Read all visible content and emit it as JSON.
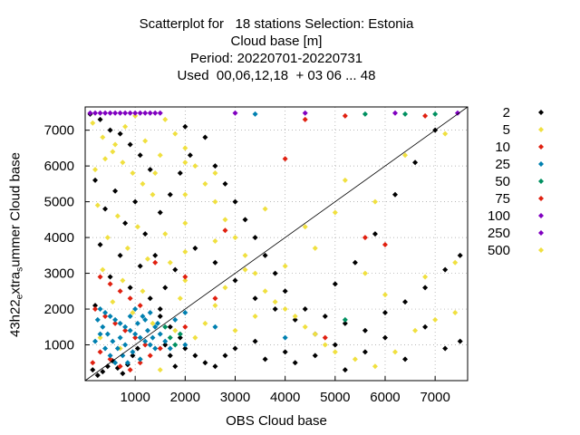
{
  "title_lines": [
    "Scatterplot for   18 stations Selection: Estonia",
    "Cloud base [m]",
    "Period: 20220701-20220731",
    "Used  00,06,12,18  + 03 06 ... 48"
  ],
  "chart_data": {
    "type": "scatter",
    "xlabel": "OBS Cloud base",
    "ylabel_parts": [
      "43h22",
      "e",
      "xtra",
      "s",
      "ummer Cloud base"
    ],
    "xlim": [
      0,
      7650
    ],
    "ylim": [
      0,
      7650
    ],
    "xticks": [
      "1000",
      "2000",
      "3000",
      "4000",
      "5000",
      "6000",
      "7000"
    ],
    "yticks": [
      "1000",
      "2000",
      "3000",
      "4000",
      "5000",
      "6000",
      "7000"
    ],
    "xtick_values": [
      1000,
      2000,
      3000,
      4000,
      5000,
      6000,
      7000
    ],
    "ytick_values": [
      1000,
      2000,
      3000,
      4000,
      5000,
      6000,
      7000
    ],
    "grid": true,
    "diagonal": true,
    "legend_position": "right",
    "legend": [
      {
        "label": "2",
        "color": "#000000"
      },
      {
        "label": "5",
        "color": "#f0e040"
      },
      {
        "label": "10",
        "color": "#e02010"
      },
      {
        "label": "25",
        "color": "#0080b0"
      },
      {
        "label": "50",
        "color": "#009060"
      },
      {
        "label": "75",
        "color": "#e02010"
      },
      {
        "label": "100",
        "color": "#8000c0"
      },
      {
        "label": "250",
        "color": "#8000c0"
      },
      {
        "label": "500",
        "color": "#f0e040"
      }
    ],
    "series": [
      {
        "color": "#000000",
        "points": [
          [
            100,
            7450
          ],
          [
            300,
            7300
          ],
          [
            500,
            7000
          ],
          [
            700,
            6900
          ],
          [
            900,
            6600
          ],
          [
            1100,
            6300
          ],
          [
            1300,
            5900
          ],
          [
            200,
            5600
          ],
          [
            600,
            5300
          ],
          [
            1000,
            5000
          ],
          [
            400,
            4800
          ],
          [
            800,
            4400
          ],
          [
            1200,
            4100
          ],
          [
            300,
            3800
          ],
          [
            700,
            3500
          ],
          [
            1100,
            3200
          ],
          [
            500,
            2900
          ],
          [
            900,
            2600
          ],
          [
            1300,
            2300
          ],
          [
            200,
            2100
          ],
          [
            1500,
            1800
          ],
          [
            1700,
            1500
          ],
          [
            1900,
            1200
          ],
          [
            2000,
            900
          ],
          [
            2200,
            700
          ],
          [
            2400,
            500
          ],
          [
            2600,
            400
          ],
          [
            2800,
            700
          ],
          [
            3000,
            900
          ],
          [
            3400,
            1100
          ],
          [
            3600,
            600
          ],
          [
            4000,
            800
          ],
          [
            4200,
            500
          ],
          [
            4600,
            700
          ],
          [
            5000,
            1000
          ],
          [
            5200,
            300
          ],
          [
            5600,
            800
          ],
          [
            6000,
            1200
          ],
          [
            6400,
            600
          ],
          [
            6800,
            1500
          ],
          [
            7200,
            900
          ],
          [
            7500,
            1100
          ],
          [
            2000,
            7100
          ],
          [
            2400,
            6800
          ],
          [
            2600,
            6000
          ],
          [
            2800,
            5500
          ],
          [
            3000,
            5000
          ],
          [
            3200,
            4500
          ],
          [
            3400,
            4000
          ],
          [
            3600,
            3500
          ],
          [
            3800,
            3000
          ],
          [
            4000,
            2500
          ],
          [
            4400,
            2000
          ],
          [
            4800,
            1800
          ],
          [
            5200,
            1600
          ],
          [
            5600,
            1400
          ],
          [
            6000,
            1900
          ],
          [
            6400,
            2200
          ],
          [
            6800,
            2600
          ],
          [
            7200,
            3100
          ],
          [
            7500,
            3500
          ],
          [
            2200,
            3700
          ],
          [
            2600,
            3300
          ],
          [
            3000,
            2800
          ],
          [
            3400,
            2300
          ],
          [
            3800,
            2000
          ],
          [
            4200,
            1700
          ],
          [
            4600,
            1300
          ],
          [
            5000,
            2700
          ],
          [
            5400,
            3300
          ],
          [
            5800,
            4100
          ],
          [
            6200,
            5200
          ],
          [
            6600,
            6100
          ],
          [
            7000,
            7000
          ],
          [
            1500,
            4700
          ],
          [
            1700,
            5200
          ],
          [
            1900,
            5800
          ],
          [
            2100,
            6300
          ],
          [
            1600,
            2600
          ],
          [
            1800,
            3100
          ],
          [
            1400,
            3500
          ],
          [
            1500,
            2000
          ],
          [
            1600,
            1000
          ],
          [
            1700,
            700
          ],
          [
            1800,
            400
          ],
          [
            150,
            300
          ],
          [
            250,
            150
          ],
          [
            350,
            250
          ],
          [
            450,
            400
          ],
          [
            550,
            550
          ],
          [
            650,
            350
          ],
          [
            750,
            200
          ],
          [
            850,
            450
          ],
          [
            950,
            700
          ],
          [
            1050,
            900
          ]
        ]
      },
      {
        "color": "#f0e040",
        "points": [
          [
            150,
            7200
          ],
          [
            350,
            6800
          ],
          [
            550,
            6400
          ],
          [
            750,
            6100
          ],
          [
            950,
            5800
          ],
          [
            1150,
            5500
          ],
          [
            1350,
            5200
          ],
          [
            250,
            4900
          ],
          [
            650,
            4600
          ],
          [
            1050,
            4300
          ],
          [
            450,
            4000
          ],
          [
            850,
            3700
          ],
          [
            1250,
            3400
          ],
          [
            350,
            3100
          ],
          [
            750,
            2800
          ],
          [
            1150,
            2500
          ],
          [
            550,
            2200
          ],
          [
            950,
            1900
          ],
          [
            1350,
            1600
          ],
          [
            1600,
            7300
          ],
          [
            1800,
            6900
          ],
          [
            2000,
            6500
          ],
          [
            2200,
            6000
          ],
          [
            2400,
            5500
          ],
          [
            2600,
            5000
          ],
          [
            2800,
            4500
          ],
          [
            3000,
            4000
          ],
          [
            3200,
            3500
          ],
          [
            3400,
            3000
          ],
          [
            3600,
            2500
          ],
          [
            3800,
            2200
          ],
          [
            4000,
            2000
          ],
          [
            4200,
            1800
          ],
          [
            4400,
            1500
          ],
          [
            4600,
            1300
          ],
          [
            4800,
            1000
          ],
          [
            5000,
            800
          ],
          [
            5400,
            600
          ],
          [
            5800,
            400
          ],
          [
            6200,
            800
          ],
          [
            6600,
            1400
          ],
          [
            7000,
            1700
          ],
          [
            7400,
            1900
          ],
          [
            2000,
            2800
          ],
          [
            2000,
            3600
          ],
          [
            2000,
            4400
          ],
          [
            2000,
            5200
          ],
          [
            2000,
            6100
          ],
          [
            2600,
            2100
          ],
          [
            2600,
            3900
          ],
          [
            2600,
            5800
          ],
          [
            3600,
            4800
          ],
          [
            4400,
            4300
          ],
          [
            5200,
            5600
          ],
          [
            5800,
            5000
          ],
          [
            6400,
            6300
          ],
          [
            7200,
            6900
          ],
          [
            1800,
            1400
          ],
          [
            1900,
            2300
          ],
          [
            1700,
            3300
          ],
          [
            1600,
            4100
          ],
          [
            1500,
            6300
          ],
          [
            1400,
            5800
          ],
          [
            1200,
            6700
          ],
          [
            1000,
            7400
          ],
          [
            800,
            7100
          ],
          [
            600,
            6600
          ],
          [
            400,
            6200
          ],
          [
            200,
            5900
          ],
          [
            300,
            1200
          ],
          [
            700,
            900
          ],
          [
            1100,
            600
          ],
          [
            1500,
            300
          ],
          [
            3000,
            1400
          ],
          [
            3400,
            1800
          ],
          [
            4000,
            3200
          ],
          [
            4600,
            3700
          ],
          [
            5000,
            4700
          ],
          [
            5600,
            3000
          ],
          [
            6000,
            2400
          ],
          [
            6800,
            2900
          ],
          [
            7400,
            3300
          ],
          [
            2200,
            1200
          ],
          [
            2400,
            1600
          ],
          [
            2800,
            2600
          ],
          [
            3200,
            3100
          ]
        ]
      },
      {
        "color": "#e02010",
        "points": [
          [
            300,
            2900
          ],
          [
            500,
            2700
          ],
          [
            700,
            2500
          ],
          [
            900,
            2300
          ],
          [
            1100,
            2100
          ],
          [
            200,
            2000
          ],
          [
            400,
            1800
          ],
          [
            600,
            1600
          ],
          [
            800,
            1400
          ],
          [
            1000,
            1200
          ],
          [
            1200,
            1000
          ],
          [
            300,
            800
          ],
          [
            500,
            600
          ],
          [
            700,
            400
          ],
          [
            900,
            300
          ],
          [
            1100,
            500
          ],
          [
            1300,
            700
          ],
          [
            150,
            500
          ],
          [
            1500,
            900
          ],
          [
            2000,
            2900
          ],
          [
            2000,
            1500
          ],
          [
            2600,
            2300
          ],
          [
            2800,
            4200
          ],
          [
            4000,
            6200
          ],
          [
            4400,
            7300
          ],
          [
            4800,
            1200
          ],
          [
            5200,
            7400
          ],
          [
            6000,
            3800
          ],
          [
            6800,
            7400
          ],
          [
            5600,
            4000
          ],
          [
            1400,
            3300
          ]
        ]
      },
      {
        "color": "#0080b0",
        "points": [
          [
            300,
            2000
          ],
          [
            400,
            1900
          ],
          [
            500,
            1800
          ],
          [
            600,
            1700
          ],
          [
            700,
            1600
          ],
          [
            800,
            1500
          ],
          [
            900,
            1400
          ],
          [
            1000,
            1300
          ],
          [
            1100,
            1200
          ],
          [
            1200,
            1100
          ],
          [
            1300,
            1000
          ],
          [
            1400,
            900
          ],
          [
            250,
            1700
          ],
          [
            350,
            1500
          ],
          [
            450,
            1300
          ],
          [
            550,
            1100
          ],
          [
            650,
            900
          ],
          [
            750,
            700
          ],
          [
            850,
            500
          ],
          [
            950,
            800
          ],
          [
            1050,
            1600
          ],
          [
            1150,
            1800
          ],
          [
            1250,
            1400
          ],
          [
            1350,
            1200
          ],
          [
            1450,
            1600
          ],
          [
            200,
            1100
          ],
          [
            300,
            1300
          ],
          [
            400,
            900
          ],
          [
            500,
            700
          ],
          [
            600,
            500
          ],
          [
            700,
            1200
          ],
          [
            800,
            1000
          ],
          [
            900,
            1800
          ],
          [
            1000,
            2000
          ],
          [
            1100,
            600
          ],
          [
            1200,
            1700
          ],
          [
            1300,
            1900
          ],
          [
            1400,
            1500
          ],
          [
            1500,
            1300
          ],
          [
            1600,
            1100
          ],
          [
            1700,
            900
          ],
          [
            1800,
            1700
          ],
          [
            2000,
            1000
          ],
          [
            2000,
            1900
          ],
          [
            2600,
            1500
          ],
          [
            3400,
            7450
          ],
          [
            4000,
            1200
          ]
        ]
      },
      {
        "color": "#009060",
        "points": [
          [
            1600,
            1500
          ],
          [
            1700,
            1200
          ],
          [
            1800,
            1000
          ],
          [
            1900,
            1300
          ],
          [
            5200,
            1700
          ],
          [
            6400,
            7450
          ],
          [
            7000,
            7450
          ],
          [
            5600,
            7450
          ]
        ]
      },
      {
        "color": "#8000c0",
        "points": [
          [
            100,
            7480
          ],
          [
            200,
            7480
          ],
          [
            300,
            7480
          ],
          [
            400,
            7480
          ],
          [
            500,
            7480
          ],
          [
            600,
            7480
          ],
          [
            700,
            7480
          ],
          [
            800,
            7480
          ],
          [
            900,
            7480
          ],
          [
            1000,
            7480
          ],
          [
            1100,
            7480
          ],
          [
            1200,
            7480
          ],
          [
            1300,
            7480
          ],
          [
            1400,
            7480
          ],
          [
            1500,
            7480
          ],
          [
            3000,
            7480
          ],
          [
            4400,
            7480
          ],
          [
            6200,
            7480
          ],
          [
            7450,
            7480
          ]
        ]
      }
    ]
  }
}
